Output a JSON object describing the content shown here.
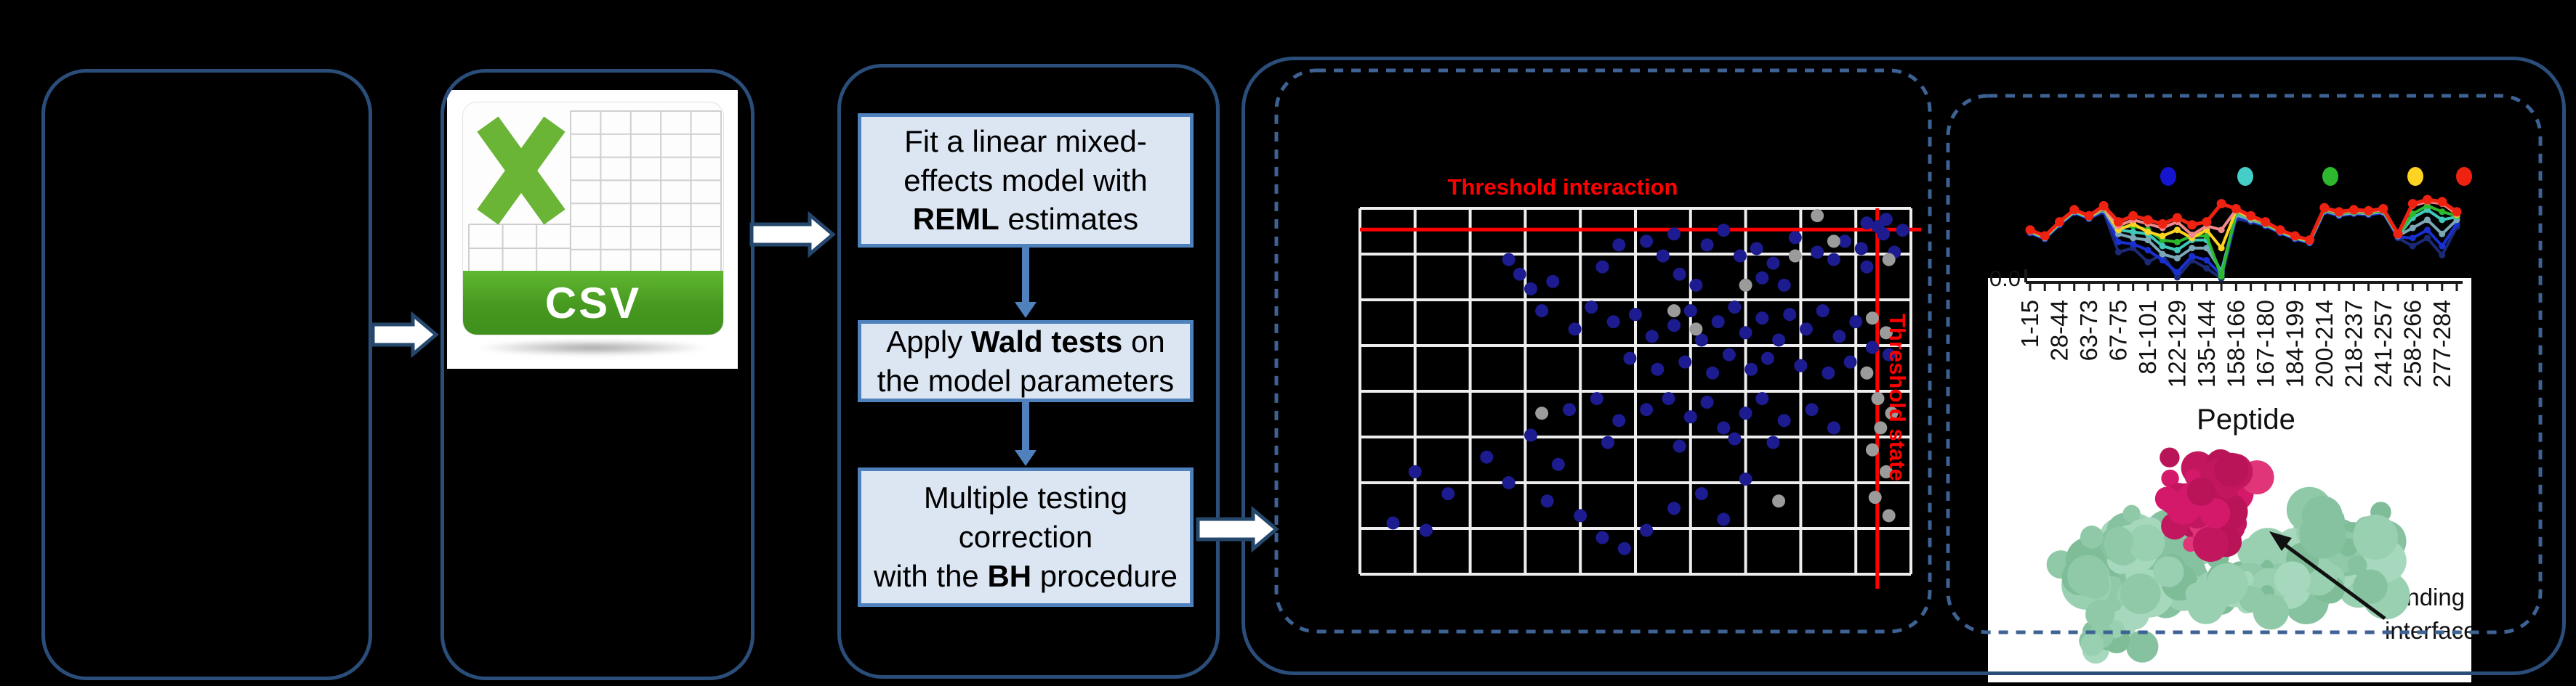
{
  "csv": {
    "badge": "CSV"
  },
  "flowchart": {
    "boxes": [
      {
        "segments": [
          {
            "t": "Fit a linear mixed-\neffects model with\n"
          },
          {
            "t": "REML",
            "b": true
          },
          {
            "t": " estimates"
          }
        ]
      },
      {
        "segments": [
          {
            "t": "Apply "
          },
          {
            "t": "Wald tests",
            "b": true
          },
          {
            "t": " on\nthe model parameters"
          }
        ]
      },
      {
        "segments": [
          {
            "t": "Multiple testing\ncorrection\nwith the "
          },
          {
            "t": "BH",
            "b": true
          },
          {
            "t": " procedure"
          }
        ]
      }
    ]
  },
  "protein": {
    "label": "Binding\ninterface",
    "surface_color": "#8fc9a8",
    "peptide_color": "#d4196b"
  },
  "chart_data": [
    {
      "type": "scatter",
      "title": "Threshold interaction",
      "side_label": "Threshold state",
      "grid": {
        "cols": 10,
        "rows": 8,
        "color": "#ededed"
      },
      "thresholds": {
        "horizontal_y_frac": 0.058,
        "vertical_x_frac": 0.939,
        "color": "#ff0000"
      },
      "coords": "fraction of plot area, origin top-left",
      "series": [
        {
          "name": "significant-points",
          "color": "#1c1c90",
          "points": [
            [
              0.27,
              0.14
            ],
            [
              0.29,
              0.18
            ],
            [
              0.31,
              0.22
            ],
            [
              0.35,
              0.2
            ],
            [
              0.44,
              0.16
            ],
            [
              0.47,
              0.1
            ],
            [
              0.52,
              0.09
            ],
            [
              0.55,
              0.13
            ],
            [
              0.57,
              0.07
            ],
            [
              0.63,
              0.1
            ],
            [
              0.66,
              0.06
            ],
            [
              0.69,
              0.13
            ],
            [
              0.72,
              0.11
            ],
            [
              0.75,
              0.15
            ],
            [
              0.79,
              0.08
            ],
            [
              0.83,
              0.12
            ],
            [
              0.86,
              0.14
            ],
            [
              0.88,
              0.09
            ],
            [
              0.91,
              0.11
            ],
            [
              0.95,
              0.07
            ],
            [
              0.985,
              0.06
            ],
            [
              0.97,
              0.12
            ],
            [
              0.92,
              0.16
            ],
            [
              0.58,
              0.18
            ],
            [
              0.61,
              0.21
            ],
            [
              0.73,
              0.19
            ],
            [
              0.77,
              0.21
            ],
            [
              0.92,
              0.04
            ],
            [
              0.94,
              0.05
            ],
            [
              0.955,
              0.03
            ],
            [
              0.33,
              0.28
            ],
            [
              0.39,
              0.33
            ],
            [
              0.42,
              0.27
            ],
            [
              0.46,
              0.31
            ],
            [
              0.5,
              0.29
            ],
            [
              0.53,
              0.35
            ],
            [
              0.57,
              0.32
            ],
            [
              0.6,
              0.28
            ],
            [
              0.62,
              0.36
            ],
            [
              0.65,
              0.31
            ],
            [
              0.68,
              0.27
            ],
            [
              0.7,
              0.34
            ],
            [
              0.73,
              0.3
            ],
            [
              0.76,
              0.36
            ],
            [
              0.78,
              0.29
            ],
            [
              0.81,
              0.33
            ],
            [
              0.84,
              0.28
            ],
            [
              0.87,
              0.35
            ],
            [
              0.9,
              0.31
            ],
            [
              0.93,
              0.38
            ],
            [
              0.49,
              0.41
            ],
            [
              0.54,
              0.44
            ],
            [
              0.59,
              0.42
            ],
            [
              0.64,
              0.45
            ],
            [
              0.67,
              0.4
            ],
            [
              0.71,
              0.44
            ],
            [
              0.74,
              0.41
            ],
            [
              0.8,
              0.43
            ],
            [
              0.85,
              0.45
            ],
            [
              0.89,
              0.42
            ],
            [
              0.96,
              0.4
            ],
            [
              0.38,
              0.55
            ],
            [
              0.43,
              0.52
            ],
            [
              0.47,
              0.58
            ],
            [
              0.52,
              0.55
            ],
            [
              0.56,
              0.52
            ],
            [
              0.6,
              0.57
            ],
            [
              0.63,
              0.53
            ],
            [
              0.66,
              0.6
            ],
            [
              0.7,
              0.56
            ],
            [
              0.73,
              0.52
            ],
            [
              0.77,
              0.58
            ],
            [
              0.82,
              0.55
            ],
            [
              0.86,
              0.6
            ],
            [
              0.31,
              0.62
            ],
            [
              0.45,
              0.64
            ],
            [
              0.58,
              0.65
            ],
            [
              0.68,
              0.63
            ],
            [
              0.75,
              0.64
            ],
            [
              0.1,
              0.72
            ],
            [
              0.16,
              0.78
            ],
            [
              0.06,
              0.86
            ],
            [
              0.12,
              0.88
            ],
            [
              0.27,
              0.75
            ],
            [
              0.34,
              0.8
            ],
            [
              0.4,
              0.84
            ],
            [
              0.44,
              0.9
            ],
            [
              0.48,
              0.93
            ],
            [
              0.52,
              0.88
            ],
            [
              0.57,
              0.82
            ],
            [
              0.62,
              0.78
            ],
            [
              0.66,
              0.85
            ],
            [
              0.7,
              0.74
            ],
            [
              0.36,
              0.7
            ],
            [
              0.23,
              0.68
            ]
          ]
        },
        {
          "name": "nonsignificant-points",
          "color": "#9b9b9b",
          "points": [
            [
              0.57,
              0.28
            ],
            [
              0.61,
              0.33
            ],
            [
              0.83,
              0.02
            ],
            [
              0.86,
              0.09
            ],
            [
              0.79,
              0.13
            ],
            [
              0.96,
              0.14
            ],
            [
              0.93,
              0.3
            ],
            [
              0.955,
              0.34
            ],
            [
              0.92,
              0.45
            ],
            [
              0.94,
              0.52
            ],
            [
              0.965,
              0.56
            ],
            [
              0.945,
              0.6
            ],
            [
              0.93,
              0.66
            ],
            [
              0.955,
              0.72
            ],
            [
              0.935,
              0.79
            ],
            [
              0.96,
              0.84
            ],
            [
              0.76,
              0.8
            ],
            [
              0.33,
              0.56
            ],
            [
              0.7,
              0.21
            ]
          ]
        }
      ]
    },
    {
      "type": "line",
      "x_title": "Peptide",
      "y_tick_label": "0.0",
      "categories": [
        "1-15",
        "28-44",
        "63-73",
        "67-75",
        "81-101",
        "122-129",
        "135-144",
        "158-166",
        "167-180",
        "184-199",
        "200-214",
        "218-237",
        "241-257",
        "258-266",
        "277-284"
      ],
      "n_points": 30,
      "legend_dot_colors": [
        "#1515cf",
        "#45cdc8",
        "#2eb82e",
        "#ffd321",
        "#ee2211"
      ],
      "series": [
        {
          "name": "series-dark-navy",
          "color": "#1b2a77",
          "values": [
            0.49,
            0.43,
            0.57,
            0.69,
            0.63,
            0.7,
            0.3,
            0.34,
            0.2,
            0.28,
            0.05,
            0.22,
            0.14,
            0.04,
            0.63,
            0.6,
            0.56,
            0.49,
            0.43,
            0.39,
            0.7,
            0.66,
            0.68,
            0.67,
            0.69,
            0.44,
            0.36,
            0.44,
            0.27,
            0.55
          ]
        },
        {
          "name": "series-blue",
          "color": "#1a2fd0",
          "values": [
            0.49,
            0.43,
            0.57,
            0.69,
            0.63,
            0.71,
            0.4,
            0.38,
            0.32,
            0.22,
            0.1,
            0.26,
            0.22,
            0.07,
            0.65,
            0.61,
            0.56,
            0.49,
            0.43,
            0.39,
            0.7,
            0.66,
            0.68,
            0.67,
            0.69,
            0.45,
            0.44,
            0.52,
            0.36,
            0.58
          ]
        },
        {
          "name": "series-cadet",
          "color": "#7ba7b7",
          "values": [
            0.5,
            0.44,
            0.58,
            0.7,
            0.64,
            0.72,
            0.48,
            0.44,
            0.42,
            0.28,
            0.24,
            0.34,
            0.34,
            0.11,
            0.67,
            0.62,
            0.57,
            0.5,
            0.44,
            0.4,
            0.71,
            0.67,
            0.69,
            0.68,
            0.7,
            0.46,
            0.54,
            0.62,
            0.48,
            0.62
          ]
        },
        {
          "name": "series-turquoise",
          "color": "#40c8b8",
          "values": [
            0.5,
            0.44,
            0.58,
            0.7,
            0.64,
            0.77,
            0.52,
            0.5,
            0.48,
            0.36,
            0.32,
            0.42,
            0.42,
            0.09,
            0.69,
            0.63,
            0.58,
            0.5,
            0.44,
            0.4,
            0.72,
            0.68,
            0.7,
            0.69,
            0.71,
            0.46,
            0.64,
            0.72,
            0.62,
            0.65
          ]
        },
        {
          "name": "series-green",
          "color": "#2db92d",
          "values": [
            0.51,
            0.45,
            0.59,
            0.71,
            0.65,
            0.73,
            0.54,
            0.56,
            0.52,
            0.42,
            0.4,
            0.46,
            0.46,
            0.06,
            0.7,
            0.64,
            0.58,
            0.51,
            0.45,
            0.41,
            0.72,
            0.68,
            0.7,
            0.69,
            0.71,
            0.47,
            0.68,
            0.76,
            0.7,
            0.66
          ]
        },
        {
          "name": "series-yellow",
          "color": "#ffd320",
          "values": [
            0.51,
            0.45,
            0.59,
            0.71,
            0.65,
            0.74,
            0.52,
            0.58,
            0.5,
            0.46,
            0.52,
            0.44,
            0.52,
            0.34,
            0.71,
            0.64,
            0.59,
            0.51,
            0.45,
            0.41,
            0.73,
            0.69,
            0.71,
            0.7,
            0.72,
            0.47,
            0.77,
            0.81,
            0.79,
            0.67
          ]
        },
        {
          "name": "series-salmon",
          "color": "#f08a8a",
          "values": [
            0.52,
            0.46,
            0.6,
            0.72,
            0.66,
            0.74,
            0.56,
            0.62,
            0.58,
            0.54,
            0.6,
            0.47,
            0.56,
            0.52,
            0.72,
            0.65,
            0.59,
            0.52,
            0.46,
            0.42,
            0.73,
            0.69,
            0.71,
            0.7,
            0.72,
            0.48,
            0.76,
            0.8,
            0.78,
            0.68
          ]
        },
        {
          "name": "series-red",
          "color": "#ee2211",
          "values": [
            0.52,
            0.46,
            0.6,
            0.72,
            0.66,
            0.76,
            0.6,
            0.66,
            0.62,
            0.58,
            0.64,
            0.57,
            0.6,
            0.78,
            0.73,
            0.66,
            0.6,
            0.52,
            0.46,
            0.42,
            0.74,
            0.7,
            0.72,
            0.71,
            0.73,
            0.48,
            0.78,
            0.82,
            0.8,
            0.7
          ]
        }
      ]
    }
  ]
}
